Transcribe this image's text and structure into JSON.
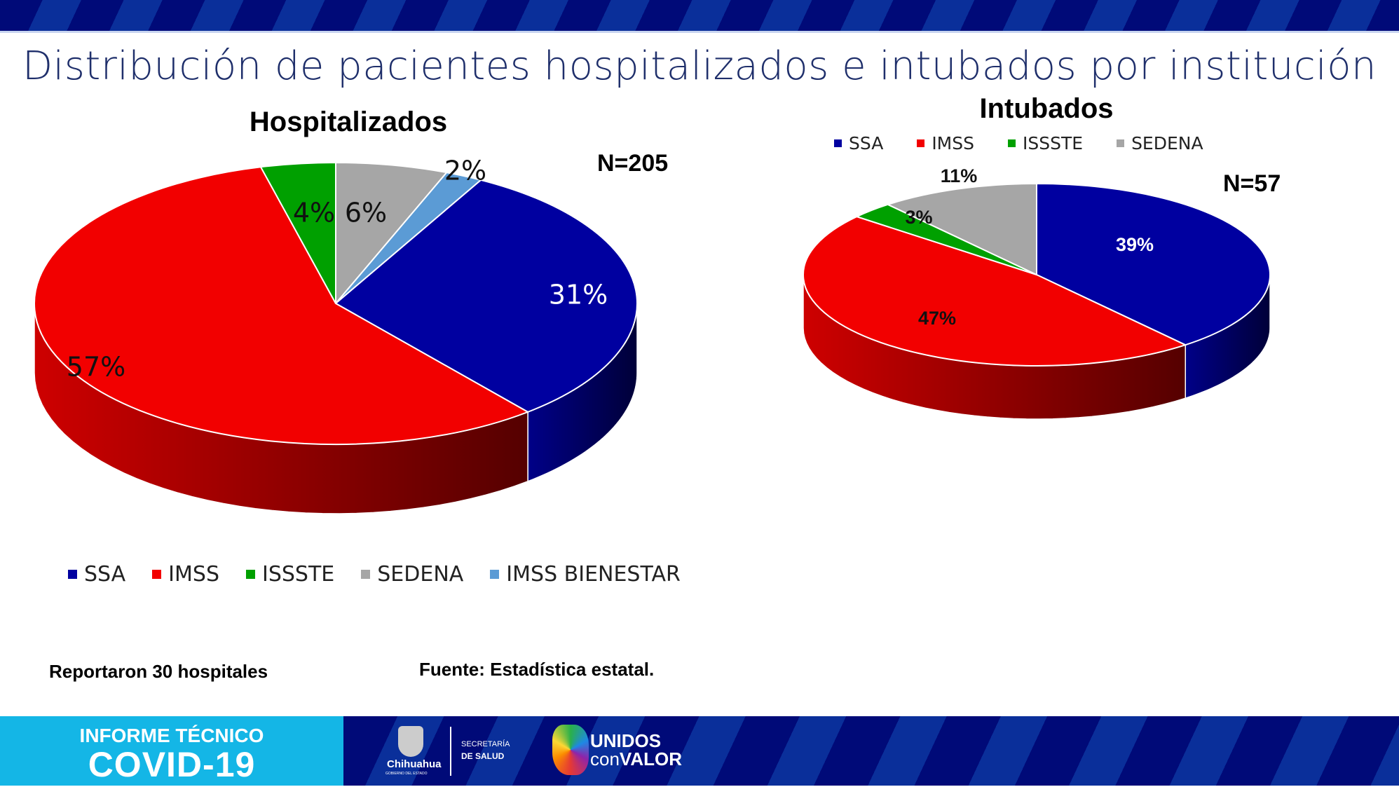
{
  "header": {
    "title": "Distribución de pacientes hospitalizados e intubados por institución"
  },
  "colors": {
    "SSA": "#0000a0",
    "IMSS": "#f20000",
    "ISSSTE": "#00a000",
    "SEDENA": "#a6a6a6",
    "IMSS BIENESTAR": "#5b9bd5"
  },
  "chart_data": [
    {
      "type": "pie",
      "title": "Hospitalizados",
      "annotation": "N=205",
      "legend_position": "bottom",
      "legend": [
        "SSA",
        "IMSS",
        "ISSSTE",
        "SEDENA",
        "IMSS BIENESTAR"
      ],
      "slices": [
        {
          "name": "SEDENA",
          "value": 6,
          "label": "6%"
        },
        {
          "name": "IMSS BIENESTAR",
          "value": 2,
          "label": "2%"
        },
        {
          "name": "SSA",
          "value": 31,
          "label": "31%"
        },
        {
          "name": "IMSS",
          "value": 57,
          "label": "57%"
        },
        {
          "name": "ISSSTE",
          "value": 4,
          "label": "4%"
        }
      ]
    },
    {
      "type": "pie",
      "title": "Intubados",
      "annotation": "N=57",
      "legend_position": "top",
      "legend": [
        "SSA",
        "IMSS",
        "ISSSTE",
        "SEDENA"
      ],
      "slices": [
        {
          "name": "SSA",
          "value": 39,
          "label": "39%"
        },
        {
          "name": "IMSS",
          "value": 47,
          "label": "47%"
        },
        {
          "name": "ISSSTE",
          "value": 3,
          "label": "3%"
        },
        {
          "name": "SEDENA",
          "value": 11,
          "label": "11%"
        }
      ]
    }
  ],
  "notes": {
    "hospitals": "Reportaron 30 hospitales",
    "source": "Fuente: Estadística estatal."
  },
  "footer": {
    "line1": "INFORME TÉCNICO",
    "line2": "COVID-19",
    "gov": "Chihuahua",
    "gov_sub": "GOBIERNO DEL ESTADO",
    "dept1": "SECRETARÍA",
    "dept2": "DE SALUD",
    "brand1": "UNIDOS",
    "brand2a": "con",
    "brand2b": "VALOR"
  }
}
